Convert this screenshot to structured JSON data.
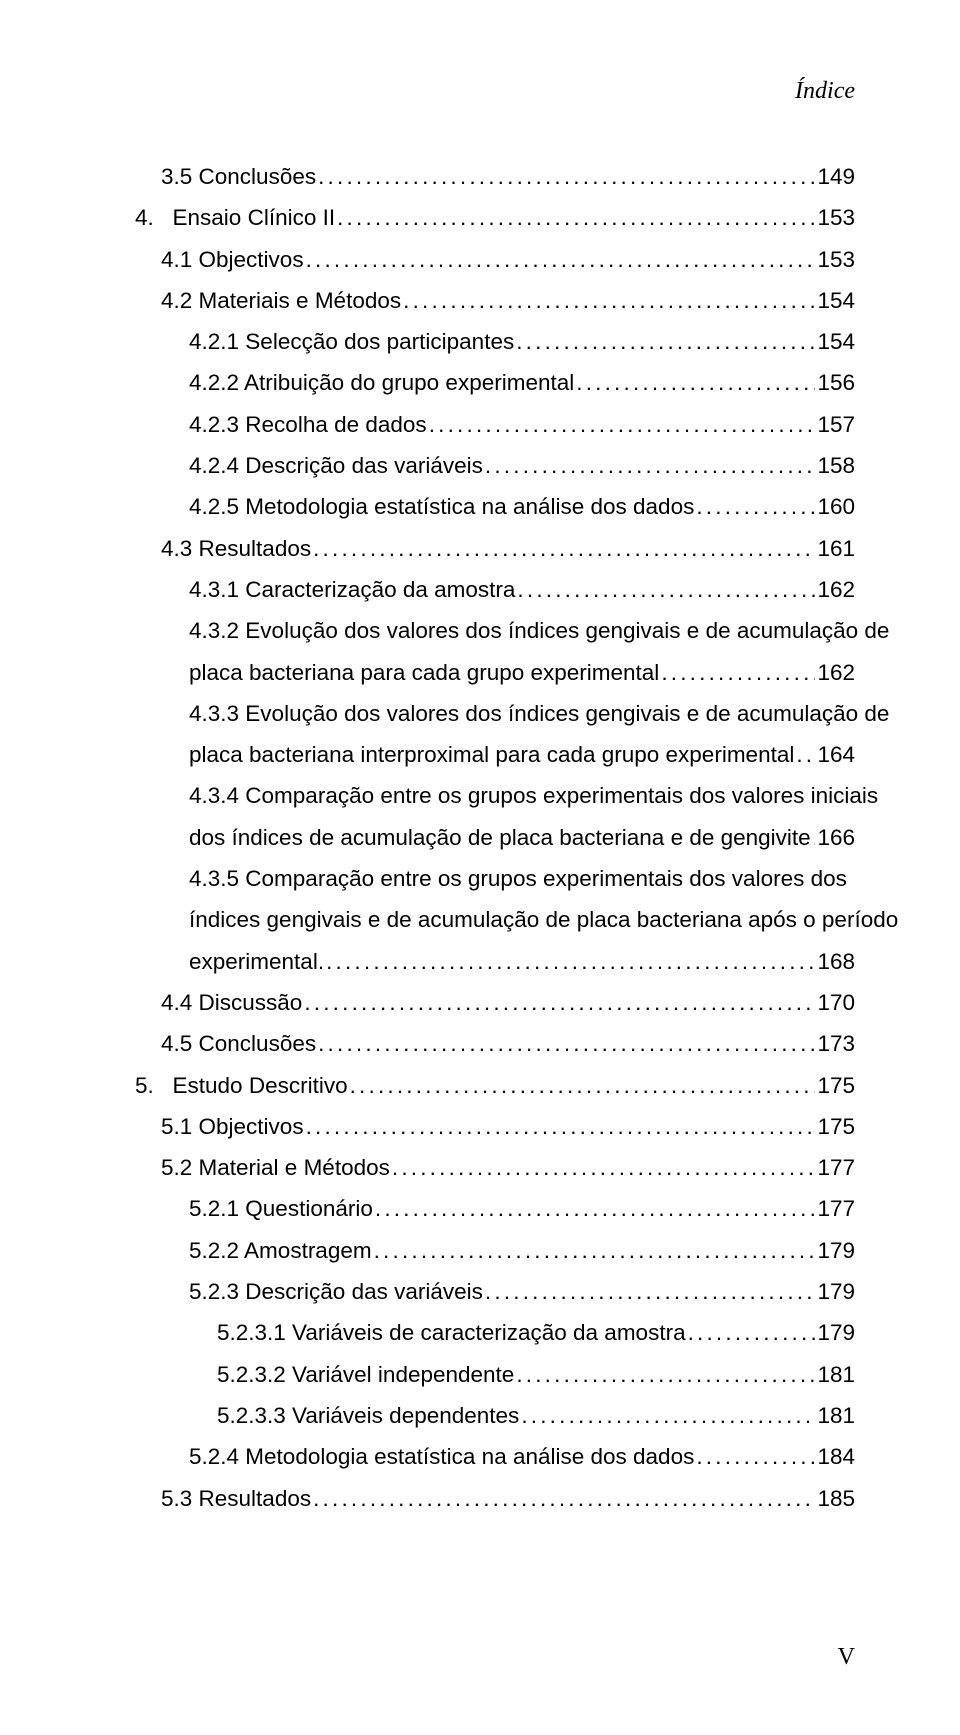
{
  "running_head": "Índice",
  "page_roman": "V",
  "dots": "......................................................................................................................................................................................",
  "toc": [
    {
      "indent": "ind-0",
      "label": "3.5 Conclusões",
      "page": "149"
    },
    {
      "indent": "ind-0n",
      "label": "4.   Ensaio Clínico II",
      "page": "153"
    },
    {
      "indent": "ind-0",
      "label": "4.1 Objectivos",
      "page": "153"
    },
    {
      "indent": "ind-0",
      "label": "4.2 Materiais e Métodos",
      "page": "154"
    },
    {
      "indent": "ind-1",
      "label": "4.2.1 Selecção dos participantes",
      "page": "154"
    },
    {
      "indent": "ind-1",
      "label": "4.2.2 Atribuição do grupo experimental",
      "page": "156"
    },
    {
      "indent": "ind-1",
      "label": "4.2.3 Recolha de dados",
      "page": "157"
    },
    {
      "indent": "ind-1",
      "label": "4.2.4 Descrição das variáveis",
      "page": "158"
    },
    {
      "indent": "ind-1",
      "label": "4.2.5 Metodologia estatística na análise dos dados",
      "page": "160"
    },
    {
      "indent": "ind-0",
      "label": "4.3 Resultados",
      "page": "161"
    },
    {
      "indent": "ind-1",
      "label": "4.3.1 Caracterização da amostra",
      "page": "162"
    },
    {
      "indent": "ind-1",
      "label": "4.3.2 Evolução dos valores dos índices gengivais e de acumulação de",
      "page": null
    },
    {
      "indent": "cont",
      "label": "placa bacteriana para cada grupo experimental",
      "page": "162"
    },
    {
      "indent": "ind-1",
      "label": "4.3.3 Evolução dos valores dos índices gengivais e de acumulação de",
      "page": null
    },
    {
      "indent": "cont",
      "label": "placa bacteriana interproximal para cada grupo experimental",
      "page": "164"
    },
    {
      "indent": "ind-1",
      "label": "4.3.4 Comparação entre os grupos experimentais dos valores iniciais",
      "page": null
    },
    {
      "indent": "cont",
      "label": "dos índices de acumulação de placa bacteriana e de gengivite",
      "page": "166"
    },
    {
      "indent": "ind-1",
      "label": "4.3.5 Comparação entre os grupos experimentais dos valores dos",
      "page": null
    },
    {
      "indent": "cont",
      "label": "índices gengivais e de acumulação de placa bacteriana após o período",
      "page": null
    },
    {
      "indent": "cont",
      "label": "experimental.",
      "page": "168"
    },
    {
      "indent": "ind-0",
      "label": "4.4 Discussão",
      "page": "170"
    },
    {
      "indent": "ind-0",
      "label": "4.5 Conclusões",
      "page": "173"
    },
    {
      "indent": "ind-0n",
      "label": "5.   Estudo Descritivo",
      "page": "175"
    },
    {
      "indent": "ind-0",
      "label": "5.1 Objectivos",
      "page": "175"
    },
    {
      "indent": "ind-0",
      "label": "5.2 Material e Métodos",
      "page": "177"
    },
    {
      "indent": "ind-1",
      "label": "5.2.1 Questionário",
      "page": "177"
    },
    {
      "indent": "ind-1",
      "label": "5.2.2 Amostragem",
      "page": "179"
    },
    {
      "indent": "ind-1",
      "label": "5.2.3 Descrição das variáveis",
      "page": "179"
    },
    {
      "indent": "ind-2",
      "label": "5.2.3.1 Variáveis de caracterização da amostra",
      "page": "179"
    },
    {
      "indent": "ind-2",
      "label": "5.2.3.2 Variável independente",
      "page": "181"
    },
    {
      "indent": "ind-2",
      "label": "5.2.3.3 Variáveis dependentes",
      "page": "181"
    },
    {
      "indent": "ind-1",
      "label": "5.2.4 Metodologia estatística na análise dos dados",
      "page": "184"
    },
    {
      "indent": "ind-0",
      "label": "5.3 Resultados",
      "page": "185"
    }
  ]
}
